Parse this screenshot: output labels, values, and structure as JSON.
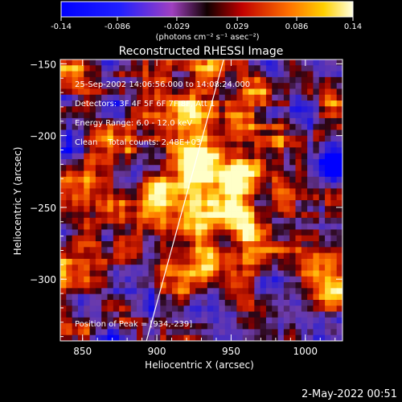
{
  "colorbar": {
    "tick_labels": [
      "-0.14",
      "-0.086",
      "-0.029",
      "0.029",
      "0.086",
      "0.14"
    ],
    "tick_values": [
      -0.14,
      -0.086,
      -0.029,
      0.029,
      0.086,
      0.14
    ],
    "range": [
      -0.14,
      0.14
    ],
    "units": "(photons cm⁻² s⁻¹ asec⁻²)"
  },
  "chart_data": {
    "type": "heatmap",
    "title": "Reconstructed RHESSI Image",
    "xlabel": "Heliocentric X (arcsec)",
    "ylabel": "Heliocentric Y (arcsec)",
    "xlim": [
      835,
      1025
    ],
    "ylim": [
      -343,
      -147
    ],
    "x_ticks": [
      850,
      900,
      950,
      1000
    ],
    "x_tick_labels": [
      "850",
      "900",
      "950",
      "1000"
    ],
    "y_ticks": [
      -300,
      -250,
      -200,
      -150
    ],
    "y_tick_labels": [
      "−300",
      "−250",
      "−200",
      "−150"
    ],
    "limb_line": [
      [
        893,
        -343
      ],
      [
        945,
        -147
      ]
    ],
    "peak": [
      934,
      -239
    ],
    "annotations": {
      "time": "25-Sep-2002 14:06:56.000 to 14:08:24.000",
      "detectors": "Detectors: 3F 4F 5F 6F 7F 8F, Att 1",
      "energy": "Energy Range: 6.0 - 12.0 keV",
      "clean": "Clean    Total counts: 2.48E+03",
      "peak_text": "Position of Peak = [934,-239]"
    }
  },
  "footer": {
    "date": "2-May-2022 00:51"
  }
}
